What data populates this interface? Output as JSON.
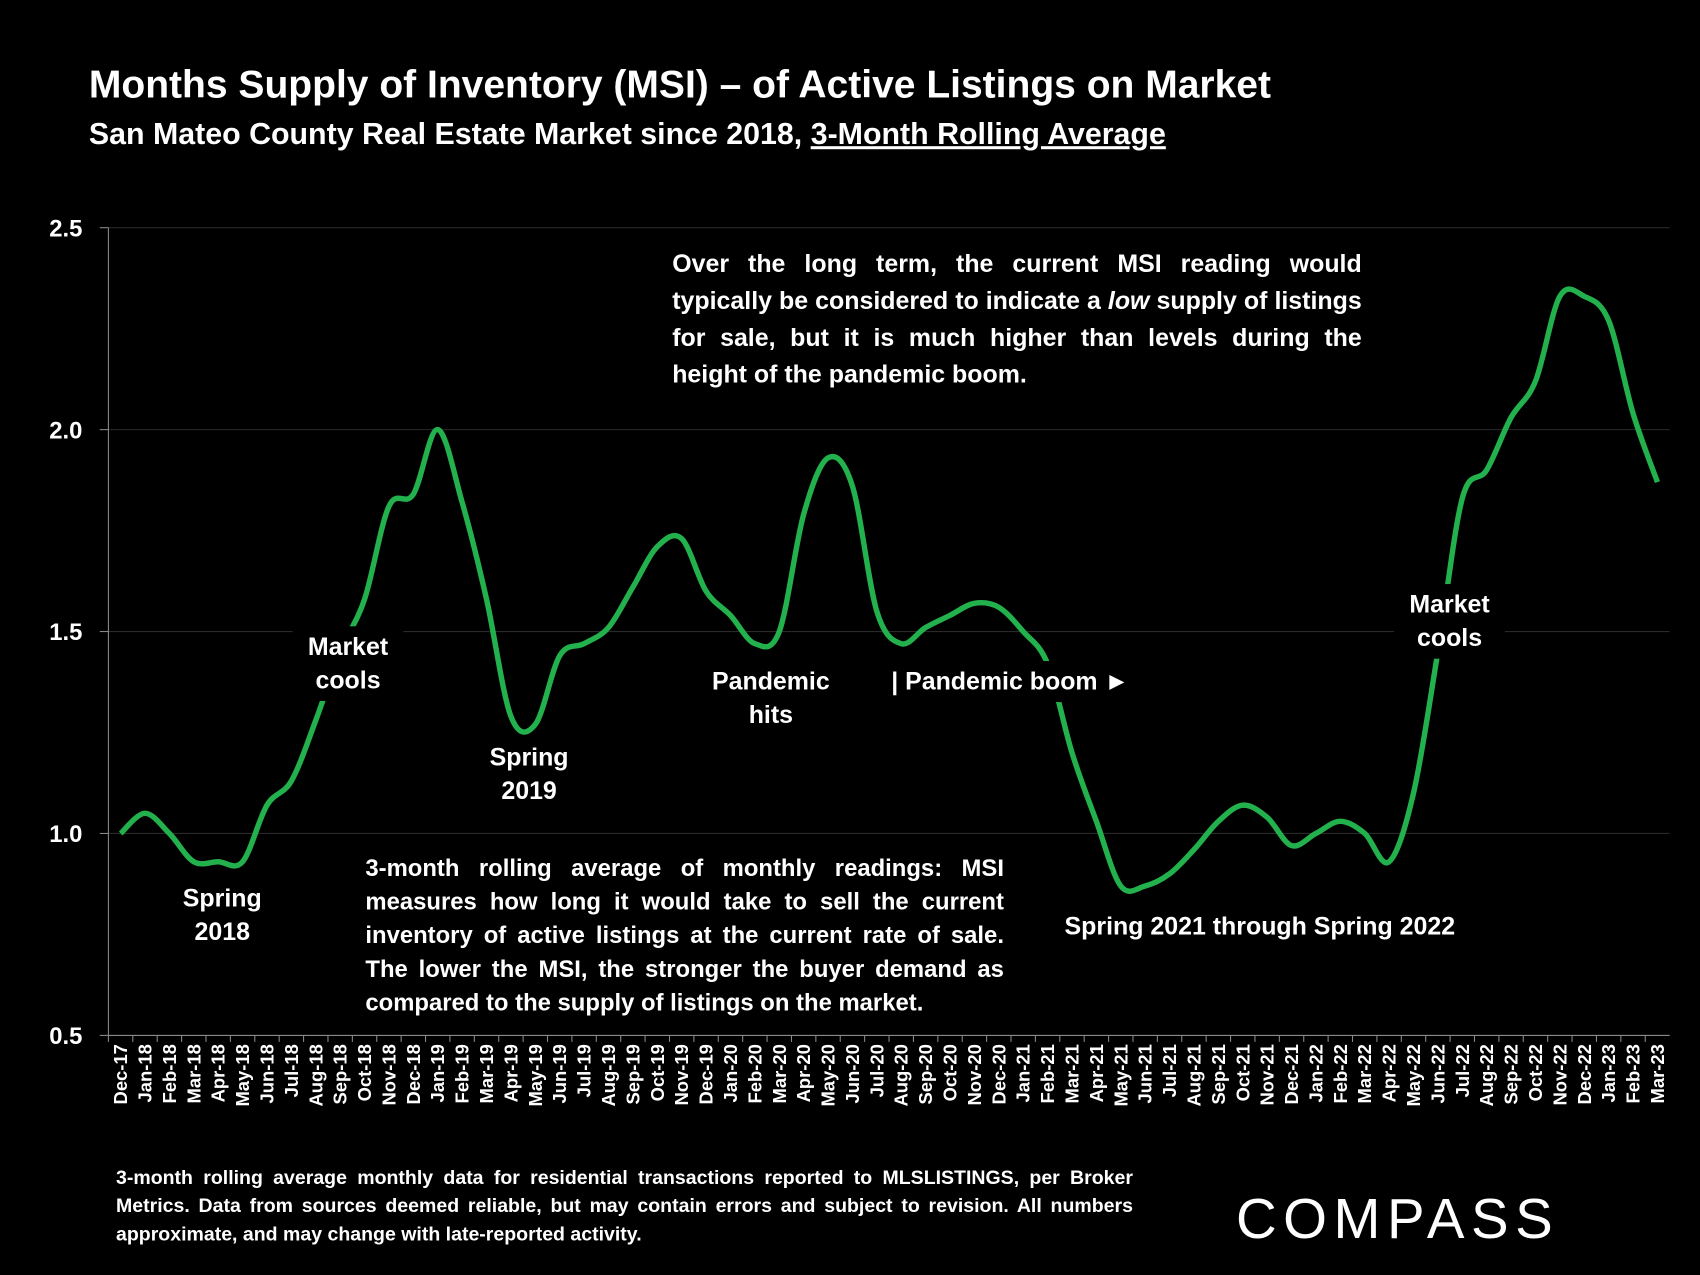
{
  "chart_data": {
    "type": "line",
    "title": "Months Supply of Inventory (MSI) – of Active Listings on Market",
    "subtitle": [
      "San Mateo County Real Estate Market since 2018,",
      "3-Month Rolling Average"
    ],
    "categories": [
      "Dec-17",
      "Jan-18",
      "Feb-18",
      "Mar-18",
      "Apr-18",
      "May-18",
      "Jun-18",
      "Jul-18",
      "Aug-18",
      "Sep-18",
      "Oct-18",
      "Nov-18",
      "Dec-18",
      "Jan-19",
      "Feb-19",
      "Mar-19",
      "Apr-19",
      "May-19",
      "Jun-19",
      "Jul-19",
      "Aug-19",
      "Sep-19",
      "Oct-19",
      "Nov-19",
      "Dec-19",
      "Jan-20",
      "Feb-20",
      "Mar-20",
      "Apr-20",
      "May-20",
      "Jun-20",
      "Jul-20",
      "Aug-20",
      "Sep-20",
      "Oct-20",
      "Nov-20",
      "Dec-20",
      "Jan-21",
      "Feb-21",
      "Mar-21",
      "Apr-21",
      "May-21",
      "Jun-21",
      "Jul-21",
      "Aug-21",
      "Sep-21",
      "Oct-21",
      "Nov-21",
      "Dec-21",
      "Jan-22",
      "Feb-22",
      "Mar-22",
      "Apr-22",
      "May-22",
      "Jun-22",
      "Jul-22",
      "Aug-22",
      "Sep-22",
      "Oct-22",
      "Nov-22",
      "Dec-22",
      "Jan-23",
      "Feb-23",
      "Mar-23"
    ],
    "series": [
      {
        "name": "MSI",
        "color": "#22b14c",
        "values": [
          1.0,
          1.05,
          1.0,
          0.93,
          0.93,
          0.93,
          1.07,
          1.13,
          1.28,
          1.45,
          1.58,
          1.81,
          1.84,
          2.0,
          1.82,
          1.58,
          1.29,
          1.27,
          1.44,
          1.47,
          1.51,
          1.61,
          1.71,
          1.73,
          1.6,
          1.54,
          1.47,
          1.5,
          1.79,
          1.93,
          1.86,
          1.55,
          1.47,
          1.51,
          1.54,
          1.57,
          1.56,
          1.5,
          1.42,
          1.2,
          1.03,
          0.87,
          0.87,
          0.9,
          0.96,
          1.03,
          1.07,
          1.04,
          0.97,
          1.0,
          1.03,
          1.0,
          0.93,
          1.1,
          1.45,
          1.83,
          1.9,
          2.03,
          2.12,
          2.33,
          2.33,
          2.27,
          2.04,
          1.87
        ]
      }
    ],
    "ylim": [
      0.5,
      2.5
    ],
    "yticks": [
      {
        "value": 2.5,
        "label": "2.5"
      },
      {
        "value": 2,
        "label": "2.0"
      },
      1.5,
      {
        "value": 1,
        "label": "1.0"
      },
      0.5
    ],
    "grid": true,
    "annotations": [
      {
        "lines": [
          "Spring",
          "2018"
        ]
      },
      {
        "lines": [
          "Market",
          "cools"
        ]
      },
      {
        "lines": [
          "Spring",
          "2019"
        ]
      },
      {
        "lines": [
          "Pandemic",
          "hits"
        ]
      },
      {
        "lines": [
          "| Pandemic boom ►"
        ]
      },
      {
        "lines": [
          "Spring 2021 through Spring 2022"
        ]
      },
      {
        "lines": [
          "Market",
          "cools"
        ]
      }
    ],
    "notes": [
      [
        "Over the long term, the current MSI reading would typically be considered to indicate a ",
        "low",
        " supply of listings for sale, but it is much higher than levels during the height of the pandemic boom."
      ],
      [
        "3-month rolling average of monthly readings: MSI measures how long it would take to sell the current inventory of active listings at the current rate of sale. The lower the MSI, the stronger the buyer demand as compared to the supply of listings on the market."
      ]
    ],
    "footnote": "3-month rolling average monthly data for residential transactions reported to MLSLISTINGS, per Broker Metrics. Data from sources deemed reliable, but may contain errors and subject to revision. All numbers approximate, and may change with late-reported activity.",
    "logo": "COMPASS"
  }
}
